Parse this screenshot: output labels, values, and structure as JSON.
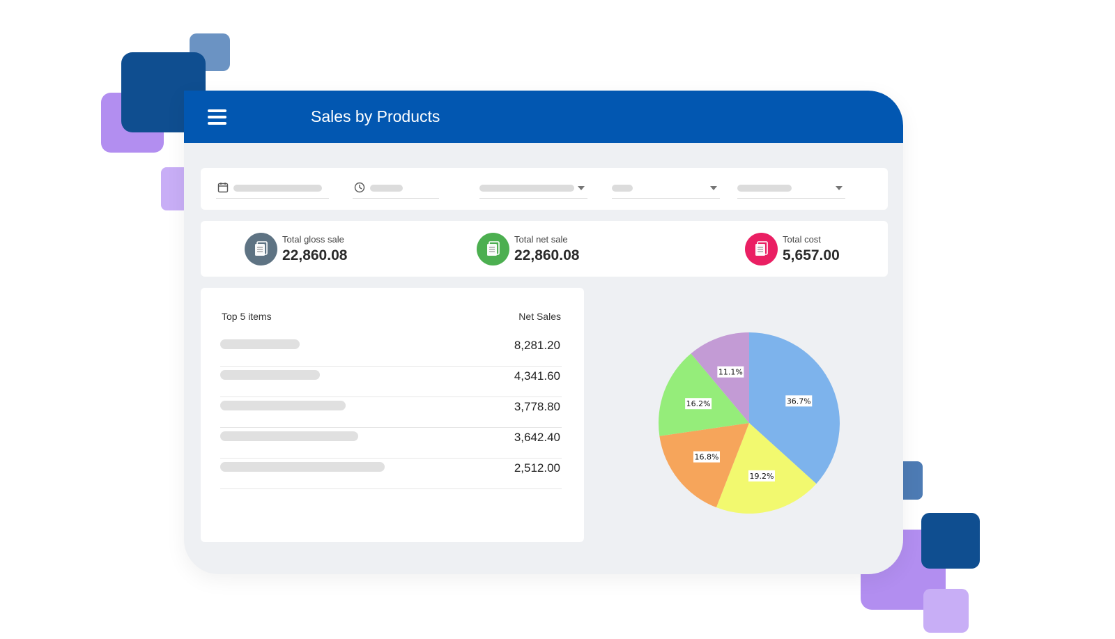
{
  "header": {
    "title": "Sales by Products"
  },
  "kpis": [
    {
      "label": "Total gloss sale",
      "value": "22,860.08",
      "color": "#5e7383"
    },
    {
      "label": "Total net sale",
      "value": "22,860.08",
      "color": "#4caf50"
    },
    {
      "label": "Total cost",
      "value": "5,657.00",
      "color": "#ea1f63"
    }
  ],
  "top_items": {
    "title": "Top 5 items",
    "column": "Net Sales",
    "values": [
      "8,281.20",
      "4,341.60",
      "3,778.80",
      "3,642.40",
      "2,512.00"
    ]
  },
  "chart_data": {
    "type": "pie",
    "labels": [
      "36.7%",
      "19.2%",
      "16.8%",
      "16.2%",
      "11.1%"
    ],
    "values": [
      36.7,
      19.2,
      16.8,
      16.2,
      11.1
    ],
    "colors": [
      "#7db3ec",
      "#f2f96f",
      "#f6a55b",
      "#95ed7a",
      "#c39bd5"
    ]
  },
  "colors": {
    "header": "#0257b1",
    "panel": "#eef0f3"
  }
}
